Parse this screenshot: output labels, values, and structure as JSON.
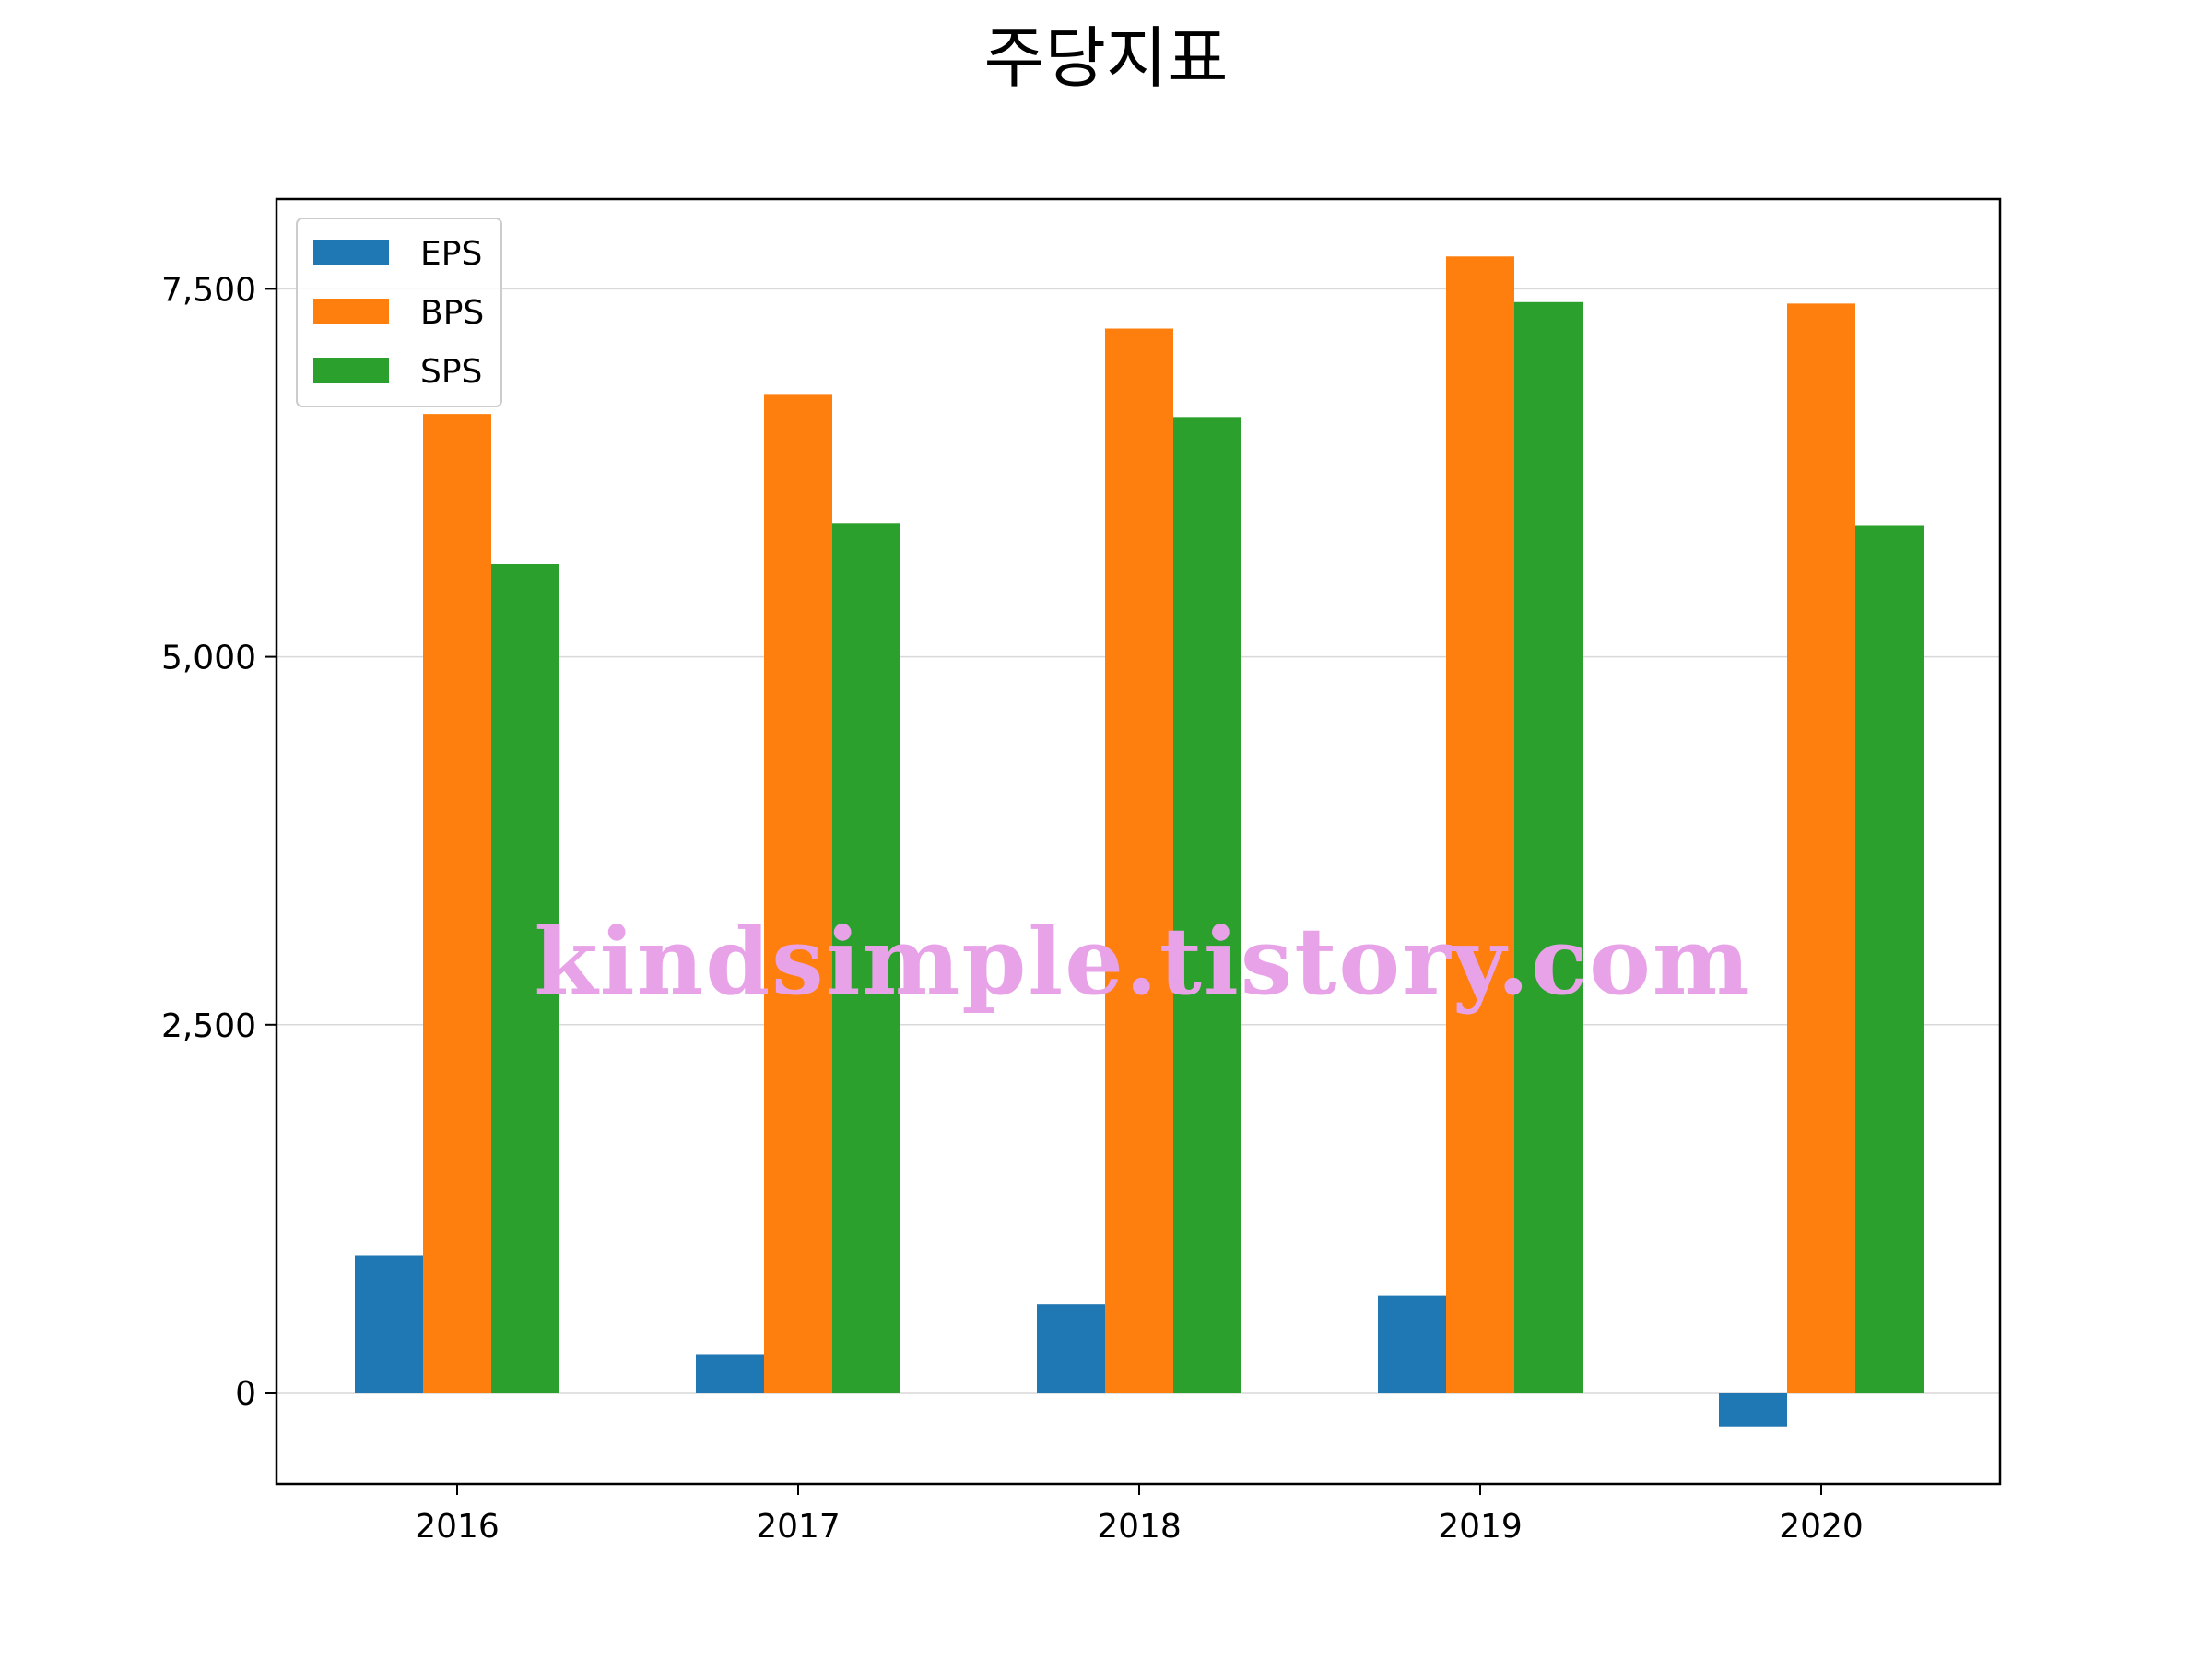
{
  "chart_data": {
    "type": "bar",
    "title": "주당지표",
    "categories": [
      "2016",
      "2017",
      "2018",
      "2019",
      "2020"
    ],
    "series": [
      {
        "name": "EPS",
        "color": "#1f77b4",
        "values": [
          930,
          260,
          600,
          660,
          -230
        ]
      },
      {
        "name": "BPS",
        "color": "#ff7f0e",
        "values": [
          6650,
          6780,
          7230,
          7720,
          7400
        ]
      },
      {
        "name": "SPS",
        "color": "#2ca02c",
        "values": [
          5630,
          5910,
          6630,
          7410,
          5890
        ]
      }
    ],
    "ylim": [
      -620,
      8110
    ],
    "yticks": [
      0,
      2500,
      5000,
      7500
    ],
    "ytick_labels": [
      "0",
      "2,500",
      "5,000",
      "7,500"
    ],
    "xlabel": "",
    "ylabel": "",
    "grid": "y",
    "grid_color": "#d9d9d9",
    "legend_position": "top-left"
  },
  "watermark": "kindsimple.tistory.com",
  "watermark_color": "#e8a3e8"
}
